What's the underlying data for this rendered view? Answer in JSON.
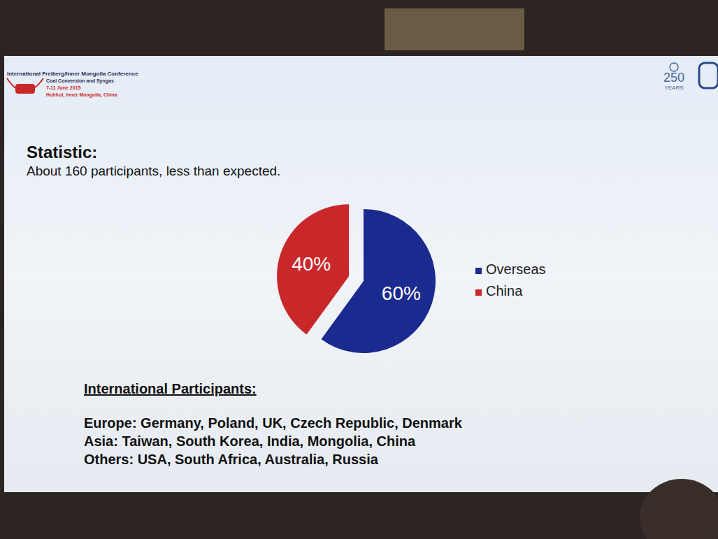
{
  "chart_data": {
    "type": "pie",
    "title": "Statistic:",
    "subtitle": "About 160 participants, less than expected.",
    "categories": [
      "Overseas",
      "China"
    ],
    "values": [
      60,
      40
    ],
    "value_labels": [
      "60%",
      "40%"
    ],
    "colors": [
      "#1b2a8e",
      "#c9282b"
    ],
    "data_labels": true,
    "legend": "right",
    "annotations": [
      "International Freiberg/Inner Mongolia Conference",
      "Coal Conversion and Syngas",
      "7-11 June 2015",
      "Huhhot, Inner Mongolia, China",
      "250",
      "YEARS",
      "International Participants:",
      "Europe: Germany, Poland, UK, Czech Republic, Denmark",
      "Asia: Taiwan, South Korea, India, Mongolia, China",
      "Others: USA, South Africa, Australia, Russia"
    ]
  }
}
